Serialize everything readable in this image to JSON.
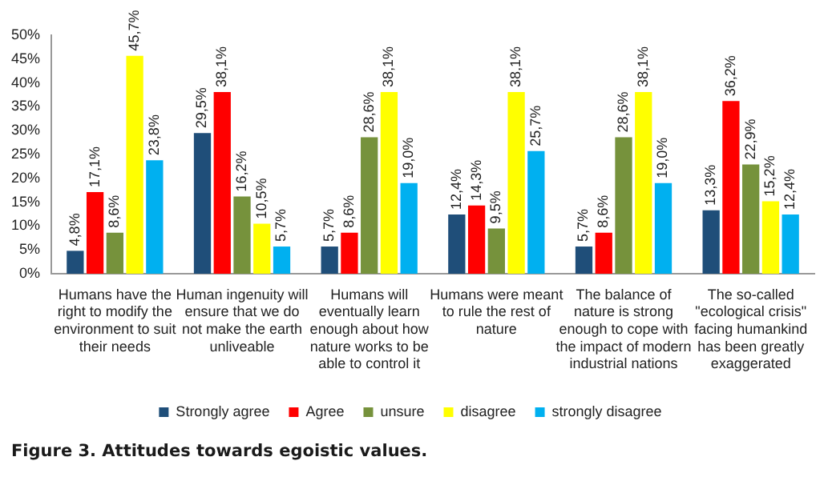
{
  "chart_data": {
    "type": "bar",
    "categories": [
      "Humans have the right to modify the environment to suit their needs",
      "Human ingenuity will ensure that we do not make the earth unliveable",
      "Humans will eventually learn enough about how nature works to be able to control it",
      "Humans were meant to rule the rest of nature",
      "The balance of nature is strong enough to cope with the impact of modern industrial nations",
      "The so-called \"ecological crisis\" facing humankind has been greatly exaggerated"
    ],
    "series": [
      {
        "name": "Strongly agree",
        "color": "#1f4e79",
        "values": [
          4.8,
          29.5,
          5.7,
          12.4,
          5.7,
          13.3
        ],
        "value_labels": [
          "4,8%",
          "29,5%",
          "5,7%",
          "12,4%",
          "5,7%",
          "13,3%"
        ]
      },
      {
        "name": "Agree",
        "color": "#ff0000",
        "values": [
          17.1,
          38.1,
          8.6,
          14.3,
          8.6,
          36.2
        ],
        "value_labels": [
          "17,1%",
          "38,1%",
          "8,6%",
          "14,3%",
          "8,6%",
          "36,2%"
        ]
      },
      {
        "name": "unsure",
        "color": "#76923c",
        "values": [
          8.6,
          16.2,
          28.6,
          9.5,
          28.6,
          22.9
        ],
        "value_labels": [
          "8,6%",
          "16,2%",
          "28,6%",
          "9,5%",
          "28,6%",
          "22,9%"
        ]
      },
      {
        "name": "disagree",
        "color": "#ffff00",
        "values": [
          45.7,
          10.5,
          38.1,
          38.1,
          38.1,
          15.2
        ],
        "value_labels": [
          "45,7%",
          "10,5%",
          "38,1%",
          "38,1%",
          "38,1%",
          "15,2%"
        ]
      },
      {
        "name": "strongly disagree",
        "color": "#00b0f0",
        "values": [
          23.8,
          5.7,
          19.0,
          25.7,
          19.0,
          12.4
        ],
        "value_labels": [
          "23,8%",
          "5,7%",
          "19,0%",
          "25,7%",
          "19,0%",
          "12,4%"
        ]
      }
    ],
    "ylim": [
      0,
      50
    ],
    "yticks": [
      {
        "value": 0,
        "label": "0%"
      },
      {
        "value": 5,
        "label": "5%"
      },
      {
        "value": 10,
        "label": "10%"
      },
      {
        "value": 15,
        "label": "15%"
      },
      {
        "value": 20,
        "label": "20%"
      },
      {
        "value": 25,
        "label": "25%"
      },
      {
        "value": 30,
        "label": "30%"
      },
      {
        "value": 35,
        "label": "35%"
      },
      {
        "value": 40,
        "label": "40%"
      },
      {
        "value": 45,
        "label": "45%"
      },
      {
        "value": 50,
        "label": "50%"
      }
    ],
    "grid": false,
    "legend": "bottom",
    "annotations": [
      "Figure 3. Attitudes towards egoistic values."
    ]
  }
}
